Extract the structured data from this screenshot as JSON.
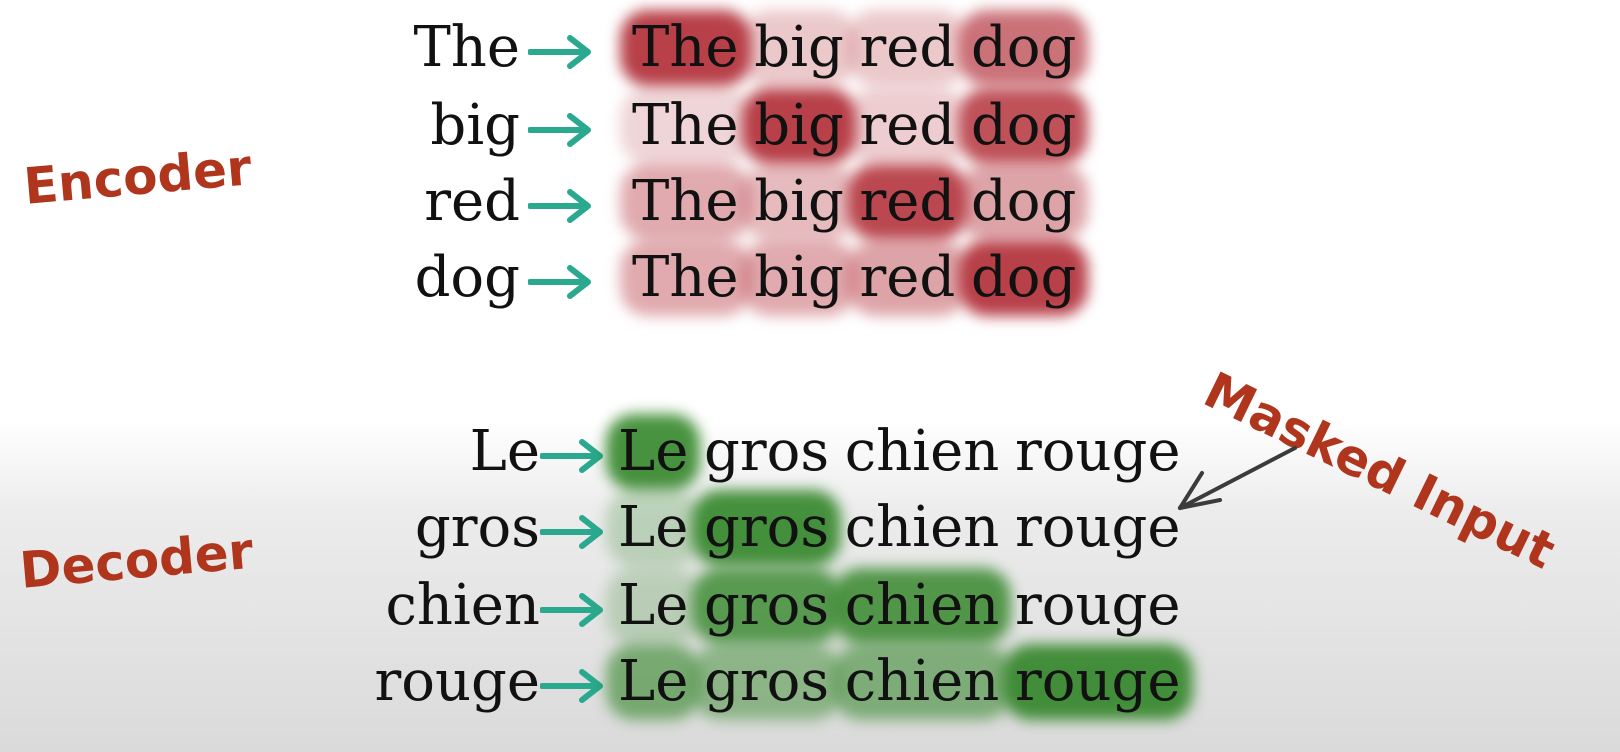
{
  "labels": {
    "encoder": "Encoder",
    "decoder": "Decoder",
    "masked_input": "Masked Input"
  },
  "colors": {
    "label": "#b0351d",
    "arrow": "#2aa98f",
    "encoder_heat": "#a8141f",
    "decoder_heat": "#1e7a12",
    "pointer_arrow": "#3b3b3b"
  },
  "encoder": {
    "tokens": [
      "The",
      "big",
      "red",
      "dog"
    ],
    "rows": [
      {
        "query": "The",
        "weights": [
          0.95,
          0.12,
          0.12,
          0.65
        ]
      },
      {
        "query": "big",
        "weights": [
          0.05,
          0.95,
          0.08,
          0.85
        ]
      },
      {
        "query": "red",
        "weights": [
          0.3,
          0.2,
          0.9,
          0.35
        ]
      },
      {
        "query": "dog",
        "weights": [
          0.3,
          0.3,
          0.35,
          0.95
        ]
      }
    ]
  },
  "decoder": {
    "tokens": [
      "Le",
      "gros",
      "chien",
      "rouge"
    ],
    "rows": [
      {
        "query": "Le",
        "weights": [
          0.95,
          0,
          0,
          0
        ]
      },
      {
        "query": "gros",
        "weights": [
          0.12,
          0.95,
          0,
          0
        ]
      },
      {
        "query": "chien",
        "weights": [
          0.1,
          0.8,
          0.85,
          0
        ]
      },
      {
        "query": "rouge",
        "weights": [
          0.55,
          0.4,
          0.5,
          0.95
        ]
      }
    ]
  }
}
